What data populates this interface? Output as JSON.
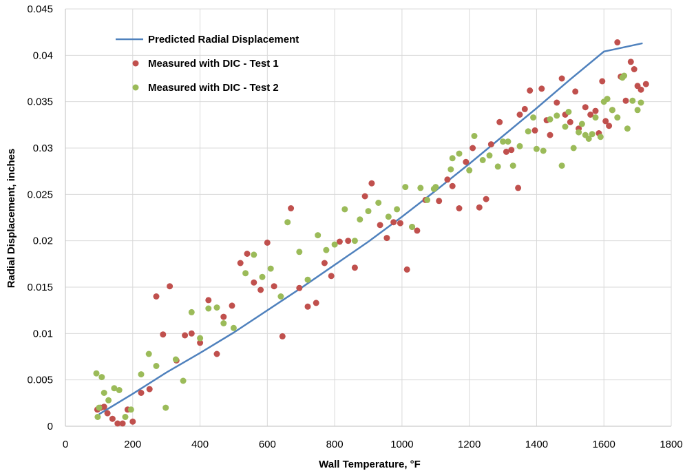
{
  "chart_data": {
    "type": "scatter",
    "xlabel": "Wall Temperature, °F",
    "ylabel": "Radial Displacement, inches",
    "xlim": [
      0,
      1800
    ],
    "ylim": [
      0,
      0.045
    ],
    "x_ticks": [
      "0",
      "200",
      "400",
      "600",
      "800",
      "1000",
      "1200",
      "1400",
      "1600",
      "1800"
    ],
    "y_ticks": [
      "0",
      "0.005",
      "0.01",
      "0.015",
      "0.02",
      "0.025",
      "0.03",
      "0.035",
      "0.04",
      "0.045"
    ],
    "grid": true,
    "legend_position": "top-left",
    "series": [
      {
        "name": "Predicted Radial Displacement",
        "kind": "line",
        "color": "#4F81BD",
        "x": [
          100,
          200,
          300,
          400,
          500,
          600,
          700,
          800,
          900,
          1000,
          1100,
          1200,
          1300,
          1400,
          1500,
          1600,
          1715
        ],
        "y": [
          0.0013,
          0.0035,
          0.0058,
          0.0079,
          0.0101,
          0.0125,
          0.0149,
          0.0174,
          0.0199,
          0.0226,
          0.0254,
          0.0283,
          0.0313,
          0.0343,
          0.0374,
          0.0404,
          0.0413
        ]
      },
      {
        "name": "Measured with DIC - Test 1",
        "kind": "scatter",
        "color": "#C0504D",
        "x": [
          95,
          105,
          115,
          125,
          140,
          155,
          170,
          185,
          200,
          225,
          250,
          270,
          290,
          310,
          330,
          355,
          375,
          400,
          425,
          450,
          470,
          495,
          520,
          540,
          560,
          580,
          600,
          620,
          645,
          670,
          695,
          720,
          745,
          770,
          790,
          815,
          840,
          860,
          890,
          910,
          935,
          955,
          975,
          995,
          1015,
          1030,
          1045,
          1070,
          1110,
          1135,
          1150,
          1170,
          1190,
          1210,
          1230,
          1250,
          1265,
          1290,
          1310,
          1325,
          1345,
          1350,
          1365,
          1380,
          1395,
          1415,
          1430,
          1440,
          1460,
          1475,
          1485,
          1500,
          1515,
          1525,
          1545,
          1560,
          1575,
          1585,
          1595,
          1605,
          1615,
          1625,
          1640,
          1650,
          1665,
          1680,
          1690,
          1700,
          1710,
          1725
        ],
        "y": [
          0.0018,
          0.002,
          0.0021,
          0.0014,
          0.0008,
          0.0003,
          0.0003,
          0.0018,
          0.0005,
          0.0036,
          0.004,
          0.014,
          0.0099,
          0.0151,
          0.0071,
          0.0098,
          0.01,
          0.009,
          0.0136,
          0.0078,
          0.0118,
          0.013,
          0.0176,
          0.0186,
          0.0155,
          0.0147,
          0.0198,
          0.0151,
          0.0097,
          0.0235,
          0.0149,
          0.0129,
          0.0133,
          0.0176,
          0.0162,
          0.0199,
          0.02,
          0.0171,
          0.0248,
          0.0262,
          0.0217,
          0.0203,
          0.022,
          0.0219,
          0.0169,
          0.0215,
          0.0211,
          0.0244,
          0.0243,
          0.0266,
          0.0259,
          0.0235,
          0.0285,
          0.03,
          0.0236,
          0.0245,
          0.0304,
          0.0328,
          0.0296,
          0.0298,
          0.0257,
          0.0336,
          0.0342,
          0.0362,
          0.0319,
          0.0364,
          0.033,
          0.0314,
          0.0349,
          0.0375,
          0.0336,
          0.0328,
          0.0361,
          0.0321,
          0.0344,
          0.0336,
          0.034,
          0.0316,
          0.0372,
          0.0329,
          0.0324,
          0.0341,
          0.0414,
          0.0377,
          0.0351,
          0.0393,
          0.0385,
          0.0367,
          0.0363,
          0.0369
        ]
      },
      {
        "name": "Measured with DIC - Test 2",
        "kind": "scatter",
        "color": "#9BBB59",
        "x": [
          92,
          96,
          100,
          108,
          115,
          128,
          145,
          160,
          178,
          195,
          225,
          248,
          270,
          298,
          328,
          350,
          375,
          400,
          425,
          450,
          470,
          500,
          535,
          560,
          585,
          610,
          640,
          660,
          695,
          720,
          750,
          775,
          800,
          830,
          860,
          875,
          900,
          930,
          960,
          985,
          1010,
          1030,
          1055,
          1075,
          1095,
          1100,
          1145,
          1150,
          1170,
          1200,
          1215,
          1240,
          1260,
          1285,
          1300,
          1315,
          1330,
          1350,
          1375,
          1390,
          1400,
          1420,
          1440,
          1460,
          1475,
          1485,
          1495,
          1510,
          1525,
          1535,
          1545,
          1555,
          1565,
          1575,
          1590,
          1600,
          1610,
          1625,
          1640,
          1655,
          1660,
          1670,
          1685,
          1700,
          1710
        ],
        "y": [
          0.0057,
          0.001,
          0.002,
          0.0053,
          0.0036,
          0.0028,
          0.0041,
          0.0039,
          0.001,
          0.0018,
          0.0056,
          0.0078,
          0.0065,
          0.002,
          0.0072,
          0.0049,
          0.0123,
          0.0095,
          0.0127,
          0.0128,
          0.0111,
          0.0106,
          0.0165,
          0.0185,
          0.0161,
          0.017,
          0.014,
          0.022,
          0.0188,
          0.0158,
          0.0206,
          0.019,
          0.0196,
          0.0234,
          0.02,
          0.0223,
          0.0232,
          0.0241,
          0.0226,
          0.0234,
          0.0258,
          0.0215,
          0.0257,
          0.0244,
          0.0256,
          0.0258,
          0.0277,
          0.0289,
          0.0294,
          0.0276,
          0.0313,
          0.0287,
          0.0292,
          0.028,
          0.0307,
          0.0307,
          0.0281,
          0.0302,
          0.0318,
          0.0333,
          0.0299,
          0.0297,
          0.0331,
          0.0335,
          0.0281,
          0.0323,
          0.0339,
          0.03,
          0.0317,
          0.0326,
          0.0314,
          0.031,
          0.0315,
          0.0333,
          0.0312,
          0.035,
          0.0353,
          0.0341,
          0.0333,
          0.0376,
          0.0378,
          0.0321,
          0.0351,
          0.0341,
          0.0349
        ]
      }
    ]
  }
}
